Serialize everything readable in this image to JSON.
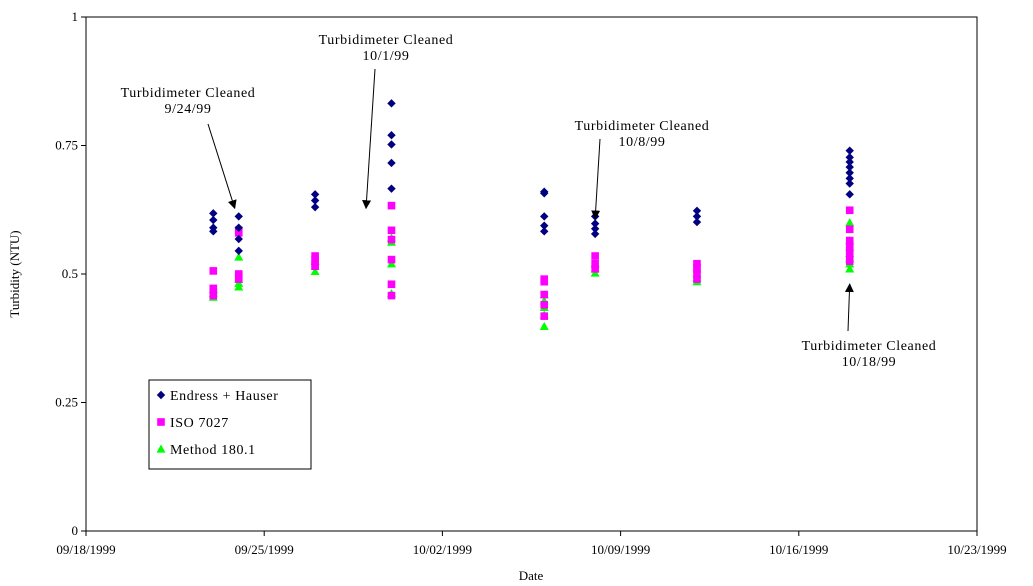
{
  "chart_data": {
    "type": "scatter",
    "title": "",
    "xlabel": "Date",
    "ylabel": "Turbidity (NTU)",
    "xlim": [
      "1999-09-18",
      "1999-10-23"
    ],
    "ylim": [
      0,
      1
    ],
    "x_ticks": [
      "09/18/1999",
      "09/25/1999",
      "10/02/1999",
      "10/09/1999",
      "10/16/1999",
      "10/23/1999"
    ],
    "y_ticks": [
      "0",
      "0.25",
      "0.5",
      "0.75",
      "1"
    ],
    "grid": false,
    "legend_position": "bottom-left",
    "series": [
      {
        "name": "Endress + Hauser",
        "marker": "diamond",
        "color": "#000080",
        "points": [
          [
            "1999-09-23",
            0.618
          ],
          [
            "1999-09-23",
            0.605
          ],
          [
            "1999-09-23",
            0.59
          ],
          [
            "1999-09-23",
            0.583
          ],
          [
            "1999-09-24",
            0.612
          ],
          [
            "1999-09-24",
            0.59
          ],
          [
            "1999-09-24",
            0.568
          ],
          [
            "1999-09-24",
            0.545
          ],
          [
            "1999-09-27",
            0.655
          ],
          [
            "1999-09-27",
            0.643
          ],
          [
            "1999-09-27",
            0.63
          ],
          [
            "1999-09-30",
            0.832
          ],
          [
            "1999-09-30",
            0.77
          ],
          [
            "1999-09-30",
            0.752
          ],
          [
            "1999-09-30",
            0.716
          ],
          [
            "1999-09-30",
            0.666
          ],
          [
            "1999-10-06",
            0.66
          ],
          [
            "1999-10-06",
            0.657
          ],
          [
            "1999-10-06",
            0.612
          ],
          [
            "1999-10-06",
            0.594
          ],
          [
            "1999-10-06",
            0.583
          ],
          [
            "1999-10-08",
            0.612
          ],
          [
            "1999-10-08",
            0.598
          ],
          [
            "1999-10-08",
            0.588
          ],
          [
            "1999-10-08",
            0.578
          ],
          [
            "1999-10-12",
            0.623
          ],
          [
            "1999-10-12",
            0.612
          ],
          [
            "1999-10-12",
            0.601
          ],
          [
            "1999-10-18",
            0.74
          ],
          [
            "1999-10-18",
            0.727
          ],
          [
            "1999-10-18",
            0.718
          ],
          [
            "1999-10-18",
            0.708
          ],
          [
            "1999-10-18",
            0.697
          ],
          [
            "1999-10-18",
            0.686
          ],
          [
            "1999-10-18",
            0.676
          ],
          [
            "1999-10-18",
            0.655
          ]
        ]
      },
      {
        "name": "ISO 7027",
        "marker": "square",
        "color": "#ff00ff",
        "points": [
          [
            "1999-09-23",
            0.506
          ],
          [
            "1999-09-23",
            0.472
          ],
          [
            "1999-09-23",
            0.465
          ],
          [
            "1999-09-23",
            0.458
          ],
          [
            "1999-09-24",
            0.585
          ],
          [
            "1999-09-24",
            0.58
          ],
          [
            "1999-09-24",
            0.5
          ],
          [
            "1999-09-24",
            0.495
          ],
          [
            "1999-09-24",
            0.49
          ],
          [
            "1999-09-27",
            0.535
          ],
          [
            "1999-09-27",
            0.528
          ],
          [
            "1999-09-27",
            0.52
          ],
          [
            "1999-09-27",
            0.515
          ],
          [
            "1999-09-30",
            0.633
          ],
          [
            "1999-09-30",
            0.585
          ],
          [
            "1999-09-30",
            0.567
          ],
          [
            "1999-09-30",
            0.528
          ],
          [
            "1999-09-30",
            0.48
          ],
          [
            "1999-09-30",
            0.458
          ],
          [
            "1999-10-06",
            0.49
          ],
          [
            "1999-10-06",
            0.485
          ],
          [
            "1999-10-06",
            0.46
          ],
          [
            "1999-10-06",
            0.44
          ],
          [
            "1999-10-06",
            0.418
          ],
          [
            "1999-10-08",
            0.535
          ],
          [
            "1999-10-08",
            0.52
          ],
          [
            "1999-10-08",
            0.51
          ],
          [
            "1999-10-12",
            0.52
          ],
          [
            "1999-10-12",
            0.512
          ],
          [
            "1999-10-12",
            0.502
          ],
          [
            "1999-10-12",
            0.49
          ],
          [
            "1999-10-18",
            0.624
          ],
          [
            "1999-10-18",
            0.587
          ],
          [
            "1999-10-18",
            0.565
          ],
          [
            "1999-10-18",
            0.555
          ],
          [
            "1999-10-18",
            0.545
          ],
          [
            "1999-10-18",
            0.535
          ],
          [
            "1999-10-18",
            0.525
          ]
        ]
      },
      {
        "name": "Method 180.1",
        "marker": "triangle",
        "color": "#00ff00",
        "points": [
          [
            "1999-09-23",
            0.47
          ],
          [
            "1999-09-23",
            0.462
          ],
          [
            "1999-09-23",
            0.455
          ],
          [
            "1999-09-24",
            0.533
          ],
          [
            "1999-09-24",
            0.49
          ],
          [
            "1999-09-24",
            0.482
          ],
          [
            "1999-09-24",
            0.475
          ],
          [
            "1999-09-27",
            0.525
          ],
          [
            "1999-09-27",
            0.515
          ],
          [
            "1999-09-27",
            0.505
          ],
          [
            "1999-09-30",
            0.57
          ],
          [
            "1999-09-30",
            0.562
          ],
          [
            "1999-09-30",
            0.52
          ],
          [
            "1999-09-30",
            0.462
          ],
          [
            "1999-10-06",
            0.46
          ],
          [
            "1999-10-06",
            0.448
          ],
          [
            "1999-10-06",
            0.435
          ],
          [
            "1999-10-06",
            0.42
          ],
          [
            "1999-10-06",
            0.398
          ],
          [
            "1999-10-08",
            0.52
          ],
          [
            "1999-10-08",
            0.51
          ],
          [
            "1999-10-08",
            0.502
          ],
          [
            "1999-10-12",
            0.51
          ],
          [
            "1999-10-12",
            0.5
          ],
          [
            "1999-10-12",
            0.492
          ],
          [
            "1999-10-12",
            0.485
          ],
          [
            "1999-10-18",
            0.6
          ],
          [
            "1999-10-18",
            0.565
          ],
          [
            "1999-10-18",
            0.552
          ],
          [
            "1999-10-18",
            0.54
          ],
          [
            "1999-10-18",
            0.53
          ],
          [
            "1999-10-18",
            0.52
          ],
          [
            "1999-10-18",
            0.51
          ]
        ]
      }
    ],
    "annotations": [
      {
        "lines": [
          "Turbidimeter Cleaned",
          "9/24/99"
        ],
        "arrow_to": [
          "1999-09-24",
          0.62
        ]
      },
      {
        "lines": [
          "Turbidimeter Cleaned",
          "10/1/99"
        ],
        "arrow_to": [
          "1999-09-29",
          0.62
        ]
      },
      {
        "lines": [
          "Turbidimeter Cleaned",
          "10/8/99"
        ],
        "arrow_to": [
          "1999-10-08",
          0.6
        ]
      },
      {
        "lines": [
          "Turbidimeter Cleaned",
          "10/18/99"
        ],
        "arrow_to": [
          "1999-10-18",
          0.5
        ]
      }
    ]
  }
}
